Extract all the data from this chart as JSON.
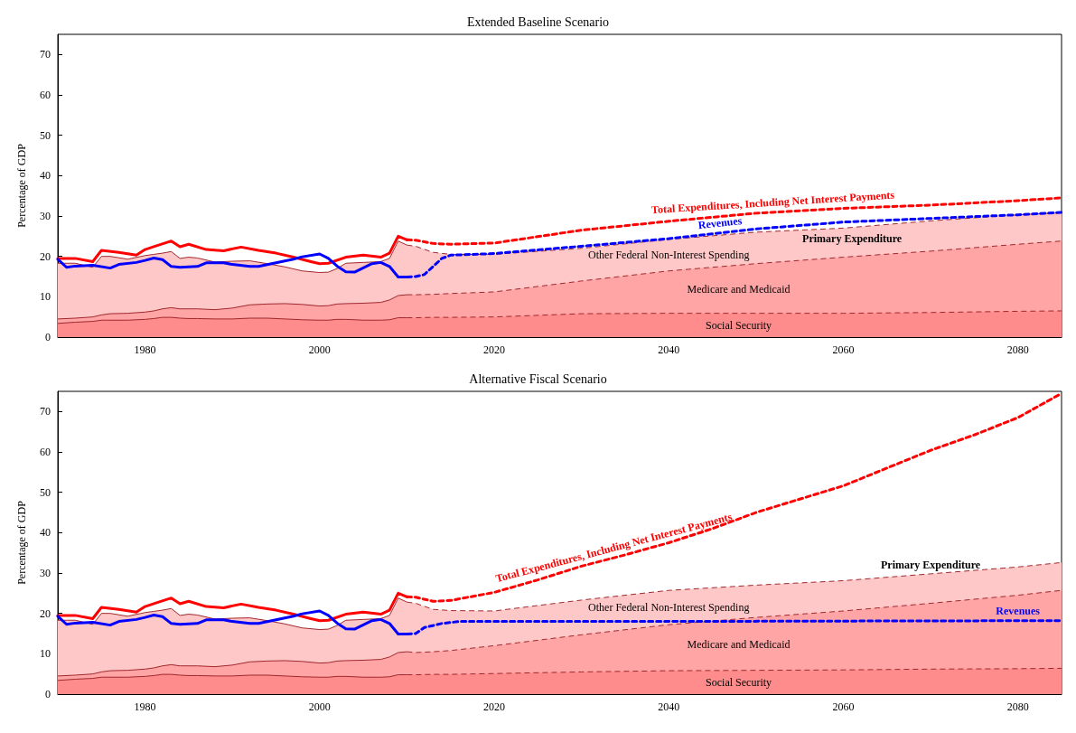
{
  "chart_data": [
    {
      "type": "area",
      "title": "Extended Baseline Scenario",
      "ylabel": "Percentage of GDP",
      "xlim": [
        1970,
        2085
      ],
      "ylim": [
        0,
        75
      ],
      "xticks": [
        1980,
        2000,
        2020,
        2040,
        2060,
        2080
      ],
      "yticks": [
        0,
        10,
        20,
        30,
        40,
        50,
        60,
        70
      ],
      "stacked": true,
      "grid": false,
      "legend": false,
      "marker": "none",
      "annotations": [
        "Primary Expenditure"
      ],
      "series": [
        {
          "name": "Social Security",
          "color": "#ff8c8c",
          "x": [
            1970,
            1972,
            1974,
            1975,
            1976,
            1978,
            1980,
            1981,
            1982,
            1983,
            1984,
            1985,
            1986,
            1988,
            1990,
            1992,
            1994,
            1996,
            1998,
            2000,
            2001,
            2002,
            2003,
            2005,
            2007,
            2008,
            2009,
            2010,
            2011,
            2013,
            2015,
            2020,
            2030,
            2040,
            2050,
            2060,
            2070,
            2080,
            2085
          ],
          "values": [
            3.4,
            3.7,
            3.9,
            4.2,
            4.2,
            4.2,
            4.4,
            4.6,
            4.9,
            4.9,
            4.7,
            4.6,
            4.6,
            4.5,
            4.5,
            4.7,
            4.7,
            4.5,
            4.3,
            4.2,
            4.2,
            4.4,
            4.4,
            4.2,
            4.2,
            4.3,
            4.8,
            4.8,
            4.8,
            4.9,
            4.9,
            5.0,
            5.8,
            5.9,
            5.9,
            5.9,
            6.1,
            6.4,
            6.5
          ]
        },
        {
          "name": "Medicare and Medicaid",
          "color": "#ffa5a5",
          "x": [
            1970,
            1972,
            1974,
            1975,
            1976,
            1978,
            1980,
            1981,
            1982,
            1983,
            1984,
            1985,
            1986,
            1988,
            1990,
            1992,
            1994,
            1996,
            1998,
            2000,
            2001,
            2002,
            2003,
            2005,
            2007,
            2008,
            2009,
            2010,
            2011,
            2013,
            2015,
            2020,
            2030,
            2040,
            2050,
            2060,
            2070,
            2080,
            2085
          ],
          "values": [
            1.1,
            1.0,
            1.1,
            1.3,
            1.6,
            1.7,
            1.8,
            1.9,
            2.1,
            2.4,
            2.3,
            2.4,
            2.4,
            2.3,
            2.7,
            3.3,
            3.5,
            3.8,
            3.8,
            3.5,
            3.6,
            3.8,
            3.9,
            4.2,
            4.4,
            4.9,
            5.5,
            5.7,
            5.7,
            5.7,
            5.9,
            6.2,
            8.1,
            10.5,
            12.3,
            13.9,
            15.2,
            16.6,
            17.3
          ]
        },
        {
          "name": "Other Federal Non-Interest Spending",
          "color": "#ffc8c8",
          "x": [
            1970,
            1972,
            1974,
            1975,
            1976,
            1978,
            1980,
            1981,
            1982,
            1983,
            1984,
            1985,
            1986,
            1988,
            1990,
            1992,
            1994,
            1996,
            1998,
            2000,
            2001,
            2002,
            2003,
            2005,
            2007,
            2008,
            2009,
            2010,
            2011,
            2013,
            2015,
            2020,
            2030,
            2040,
            2050,
            2060,
            2070,
            2080,
            2085
          ],
          "values": [
            13.8,
            13.6,
            12.3,
            14.5,
            14.2,
            13.4,
            14.0,
            14.0,
            13.8,
            13.9,
            12.5,
            12.8,
            12.6,
            11.8,
            11.6,
            10.9,
            10.0,
            9.1,
            8.3,
            8.3,
            8.3,
            8.8,
            10.0,
            10.1,
            10.1,
            10.3,
            13.5,
            12.3,
            12.0,
            10.4,
            9.7,
            9.3,
            8.1,
            7.8,
            7.8,
            7.2,
            7.5,
            7.3,
            7.0
          ]
        },
        {
          "type": "line",
          "color": "#ff0000",
          "line_style": "solid",
          "x": [
            1970,
            1972,
            1974,
            1975,
            1977,
            1979,
            1980,
            1981,
            1983,
            1984,
            1985,
            1987,
            1989,
            1991,
            1993,
            1995,
            1997,
            1999,
            2000,
            2001,
            2003,
            2005,
            2007,
            2008,
            2009,
            2010
          ],
          "values": [
            19.5,
            19.5,
            18.7,
            21.5,
            21.0,
            20.3,
            21.7,
            22.4,
            23.8,
            22.4,
            23.0,
            21.7,
            21.4,
            22.3,
            21.5,
            20.8,
            19.8,
            18.7,
            18.2,
            18.3,
            19.8,
            20.3,
            19.8,
            20.8,
            25.0,
            24.1
          ]
        },
        {
          "type": "line",
          "name": "Total Expenditures, Including Net Interest Payments",
          "color": "#ff0000",
          "line_style": "dashed",
          "x": [
            2010,
            2011,
            2013,
            2015,
            2020,
            2030,
            2040,
            2050,
            2060,
            2070,
            2080,
            2085
          ],
          "values": [
            24.1,
            24.0,
            23.2,
            23.0,
            23.3,
            26.5,
            28.7,
            30.7,
            31.9,
            32.7,
            33.8,
            34.5
          ]
        },
        {
          "type": "line",
          "color": "#0000ff",
          "line_style": "solid",
          "x": [
            1970,
            1971,
            1972,
            1974,
            1976,
            1977,
            1979,
            1980,
            1981,
            1982,
            1983,
            1984,
            1986,
            1987,
            1989,
            1990,
            1992,
            1993,
            1995,
            1997,
            1998,
            2000,
            2001,
            2002,
            2003,
            2004,
            2006,
            2007,
            2008,
            2009,
            2010
          ],
          "values": [
            19.3,
            17.3,
            17.6,
            17.8,
            17.1,
            18.0,
            18.5,
            19.0,
            19.6,
            19.2,
            17.5,
            17.3,
            17.5,
            18.4,
            18.4,
            18.0,
            17.5,
            17.5,
            18.4,
            19.3,
            19.9,
            20.6,
            19.5,
            17.6,
            16.2,
            16.1,
            18.2,
            18.5,
            17.5,
            14.9,
            14.9
          ]
        },
        {
          "type": "line",
          "name": "Revenues",
          "color": "#0000ff",
          "line_style": "dashed",
          "x": [
            2010,
            2011,
            2012,
            2013,
            2014,
            2015,
            2020,
            2030,
            2040,
            2050,
            2060,
            2070,
            2080,
            2085
          ],
          "values": [
            14.9,
            15.0,
            15.5,
            17.5,
            19.5,
            20.3,
            20.7,
            22.5,
            24.4,
            26.8,
            28.5,
            29.4,
            30.3,
            30.9
          ]
        }
      ]
    },
    {
      "type": "area",
      "title": "Alternative Fiscal Scenario",
      "ylabel": "Percentage of GDP",
      "xlim": [
        1970,
        2085
      ],
      "ylim": [
        0,
        75
      ],
      "xticks": [
        1980,
        2000,
        2020,
        2040,
        2060,
        2080
      ],
      "yticks": [
        0,
        10,
        20,
        30,
        40,
        50,
        60,
        70
      ],
      "stacked": true,
      "grid": false,
      "legend": false,
      "marker": "none",
      "annotations": [
        "Primary Expenditure"
      ],
      "series": [
        {
          "name": "Social Security",
          "color": "#ff8c8c",
          "x": [
            1970,
            1972,
            1974,
            1975,
            1976,
            1978,
            1980,
            1981,
            1982,
            1983,
            1984,
            1985,
            1986,
            1988,
            1990,
            1992,
            1994,
            1996,
            1998,
            2000,
            2001,
            2002,
            2003,
            2005,
            2007,
            2008,
            2009,
            2010,
            2011,
            2013,
            2015,
            2020,
            2030,
            2040,
            2050,
            2060,
            2070,
            2080,
            2085
          ],
          "values": [
            3.4,
            3.7,
            3.9,
            4.2,
            4.2,
            4.2,
            4.4,
            4.6,
            4.9,
            4.9,
            4.7,
            4.6,
            4.6,
            4.5,
            4.5,
            4.7,
            4.7,
            4.5,
            4.3,
            4.2,
            4.2,
            4.4,
            4.4,
            4.2,
            4.2,
            4.3,
            4.8,
            4.8,
            4.8,
            4.9,
            4.9,
            5.1,
            5.5,
            5.8,
            5.9,
            6.0,
            6.2,
            6.3,
            6.4
          ]
        },
        {
          "name": "Medicare and Medicaid",
          "color": "#ffa5a5",
          "x": [
            1970,
            1972,
            1974,
            1975,
            1976,
            1978,
            1980,
            1981,
            1982,
            1983,
            1984,
            1985,
            1986,
            1988,
            1990,
            1992,
            1994,
            1996,
            1998,
            2000,
            2001,
            2002,
            2003,
            2005,
            2007,
            2008,
            2009,
            2010,
            2011,
            2013,
            2015,
            2020,
            2030,
            2040,
            2050,
            2060,
            2070,
            2080,
            2085
          ],
          "values": [
            1.1,
            1.0,
            1.1,
            1.3,
            1.6,
            1.7,
            1.8,
            1.9,
            2.1,
            2.4,
            2.3,
            2.4,
            2.4,
            2.3,
            2.7,
            3.3,
            3.5,
            3.8,
            3.8,
            3.5,
            3.6,
            3.8,
            3.9,
            4.2,
            4.4,
            4.9,
            5.5,
            5.7,
            5.5,
            5.6,
            5.9,
            6.9,
            9.2,
            11.4,
            13.1,
            14.6,
            16.3,
            18.2,
            19.3
          ]
        },
        {
          "name": "Other Federal Non-Interest Spending",
          "color": "#ffc8c8",
          "x": [
            1970,
            1972,
            1974,
            1975,
            1976,
            1978,
            1980,
            1981,
            1982,
            1983,
            1984,
            1985,
            1986,
            1988,
            1990,
            1992,
            1994,
            1996,
            1998,
            2000,
            2001,
            2002,
            2003,
            2005,
            2007,
            2008,
            2009,
            2010,
            2011,
            2013,
            2015,
            2020,
            2030,
            2040,
            2050,
            2060,
            2070,
            2080,
            2085
          ],
          "values": [
            13.8,
            13.6,
            12.3,
            14.5,
            14.2,
            13.4,
            14.0,
            14.0,
            13.8,
            13.9,
            12.5,
            12.8,
            12.6,
            11.8,
            11.6,
            10.9,
            10.0,
            9.1,
            8.3,
            8.3,
            8.3,
            8.8,
            10.0,
            10.1,
            10.1,
            10.3,
            13.5,
            12.3,
            12.2,
            10.5,
            9.9,
            8.6,
            8.6,
            8.5,
            8.0,
            7.5,
            7.3,
            7.0,
            6.9
          ]
        },
        {
          "type": "line",
          "color": "#ff0000",
          "line_style": "solid",
          "x": [
            1970,
            1972,
            1974,
            1975,
            1977,
            1979,
            1980,
            1981,
            1983,
            1984,
            1985,
            1987,
            1989,
            1991,
            1993,
            1995,
            1997,
            1999,
            2000,
            2001,
            2003,
            2005,
            2007,
            2008,
            2009,
            2010
          ],
          "values": [
            19.5,
            19.5,
            18.7,
            21.5,
            21.0,
            20.3,
            21.7,
            22.4,
            23.8,
            22.4,
            23.0,
            21.7,
            21.4,
            22.3,
            21.5,
            20.8,
            19.8,
            18.7,
            18.2,
            18.3,
            19.8,
            20.3,
            19.8,
            20.8,
            25.0,
            24.1
          ]
        },
        {
          "type": "line",
          "name": "Total Expenditures, Including Net Interest Payments",
          "color": "#ff0000",
          "line_style": "dashed",
          "x": [
            2010,
            2011,
            2013,
            2015,
            2020,
            2025,
            2030,
            2035,
            2040,
            2045,
            2050,
            2055,
            2060,
            2065,
            2070,
            2075,
            2080,
            2085
          ],
          "values": [
            24.1,
            24.0,
            23.0,
            23.2,
            25.2,
            28.3,
            31.7,
            34.5,
            37.5,
            41.0,
            45.0,
            48.3,
            51.6,
            56.0,
            60.4,
            64.2,
            68.5,
            74.5
          ]
        },
        {
          "type": "line",
          "color": "#0000ff",
          "line_style": "solid",
          "x": [
            1970,
            1971,
            1972,
            1974,
            1976,
            1977,
            1979,
            1980,
            1981,
            1982,
            1983,
            1984,
            1986,
            1987,
            1989,
            1990,
            1992,
            1993,
            1995,
            1997,
            1998,
            2000,
            2001,
            2002,
            2003,
            2004,
            2006,
            2007,
            2008,
            2009,
            2010
          ],
          "values": [
            19.3,
            17.3,
            17.6,
            17.8,
            17.1,
            18.0,
            18.5,
            19.0,
            19.6,
            19.2,
            17.5,
            17.3,
            17.5,
            18.4,
            18.4,
            18.0,
            17.5,
            17.5,
            18.4,
            19.3,
            19.9,
            20.6,
            19.5,
            17.6,
            16.2,
            16.1,
            18.2,
            18.5,
            17.5,
            14.9,
            14.9
          ]
        },
        {
          "type": "line",
          "name": "Revenues",
          "color": "#0000ff",
          "line_style": "dashed",
          "x": [
            2010,
            2011,
            2012,
            2014,
            2016,
            2020,
            2040,
            2060,
            2085
          ],
          "values": [
            14.9,
            15.0,
            16.5,
            17.5,
            18.0,
            18.0,
            18.0,
            18.1,
            18.2
          ]
        }
      ]
    }
  ]
}
